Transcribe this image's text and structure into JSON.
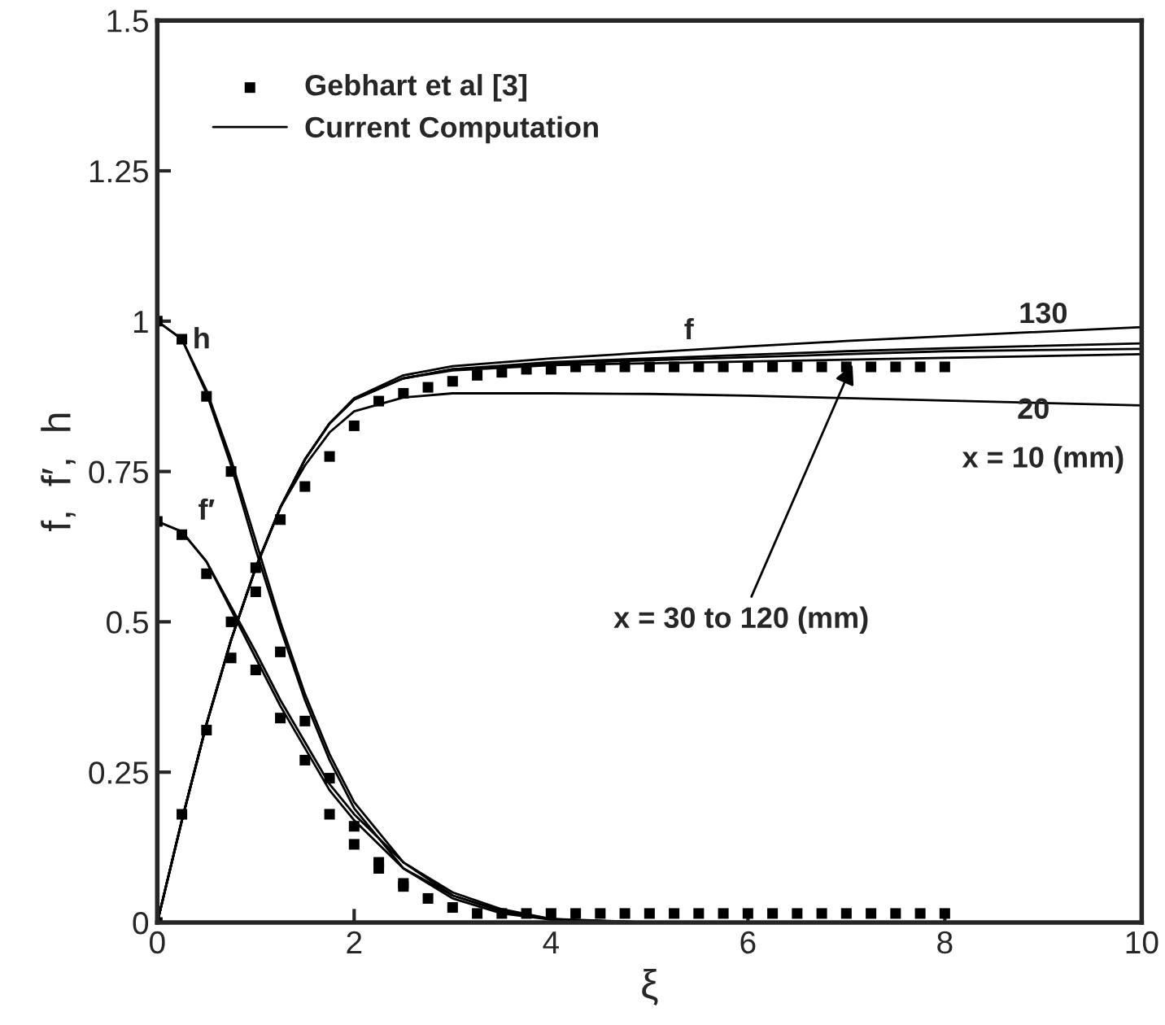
{
  "chart_data": {
    "type": "line",
    "xlabel": "ξ",
    "ylabel": "f,  f′,  h",
    "xlim": [
      0,
      10
    ],
    "ylim": [
      0,
      1.5
    ],
    "xticks": [
      0,
      2,
      4,
      6,
      8,
      10
    ],
    "yticks": [
      0,
      0.25,
      0.5,
      0.75,
      1,
      1.25,
      1.5
    ],
    "grid": false,
    "legend": "top left",
    "series": [
      {
        "type": "scatter",
        "name": "Gebhart et al [3]",
        "color": "#000000",
        "marker": "square",
        "x": [
          0,
          0.25,
          0.5,
          0.75,
          1.0,
          1.25,
          1.5,
          1.75,
          2.0,
          2.25,
          2.5
        ],
        "values": [
          1.0,
          0.97,
          0.875,
          0.75,
          0.59,
          0.45,
          0.335,
          0.24,
          0.16,
          0.1,
          0.065
        ]
      },
      {
        "type": "scatter",
        "color": "#000000",
        "marker": "square",
        "x": [
          0,
          0.25,
          0.5,
          0.75,
          1.0,
          1.25,
          1.5,
          1.75,
          2.0,
          2.25,
          2.5,
          2.75,
          3.0,
          3.25,
          3.5,
          3.75,
          4.0,
          4.25,
          4.5,
          4.75,
          5.0,
          5.25,
          5.5,
          5.75,
          6.0,
          6.25,
          6.5,
          6.75,
          7.0,
          7.25,
          7.5,
          7.75,
          8.0
        ],
        "values": [
          0.667,
          0.645,
          0.58,
          0.5,
          0.42,
          0.34,
          0.27,
          0.18,
          0.13,
          0.09,
          0.06,
          0.04,
          0.025,
          0.015,
          0.015,
          0.015,
          0.015,
          0.015,
          0.015,
          0.015,
          0.015,
          0.015,
          0.015,
          0.015,
          0.015,
          0.015,
          0.015,
          0.015,
          0.015,
          0.015,
          0.015,
          0.015,
          0.015
        ]
      },
      {
        "type": "scatter",
        "color": "#000000",
        "marker": "square",
        "x": [
          0,
          0.25,
          0.5,
          0.75,
          1.0,
          1.25,
          1.5,
          1.75,
          2.0,
          2.25,
          2.5,
          2.75,
          3.0,
          3.25,
          3.5,
          3.75,
          4.0,
          4.25,
          4.5,
          4.75,
          5.0,
          5.25,
          5.5,
          5.75,
          6.0,
          6.25,
          6.5,
          6.75,
          7.0,
          7.25,
          7.5,
          7.75,
          8.0
        ],
        "values": [
          0,
          0.18,
          0.32,
          0.44,
          0.55,
          0.67,
          0.725,
          0.775,
          0.826,
          0.867,
          0.88,
          0.89,
          0.9,
          0.91,
          0.915,
          0.92,
          0.92,
          0.924,
          0.924,
          0.924,
          0.924,
          0.924,
          0.924,
          0.924,
          0.924,
          0.924,
          0.924,
          0.924,
          0.924,
          0.924,
          0.924,
          0.924,
          0.924
        ]
      },
      {
        "type": "line",
        "name": "Current Computation",
        "color": "#000000",
        "marker": "none",
        "line_style": "solid",
        "x": [
          0,
          0.25,
          0.5,
          0.75,
          1,
          1.25,
          1.5,
          1.75,
          2,
          2.5,
          3,
          4,
          5,
          6,
          7,
          8,
          10
        ],
        "values": [
          0,
          0.17,
          0.33,
          0.47,
          0.59,
          0.69,
          0.77,
          0.83,
          0.87,
          0.905,
          0.92,
          0.93,
          0.935,
          0.94,
          0.945,
          0.95,
          0.954
        ]
      },
      {
        "type": "line",
        "color": "#000000",
        "marker": "none",
        "line_style": "solid",
        "x": [
          0,
          0.25,
          0.5,
          0.75,
          1,
          1.25,
          1.5,
          1.75,
          2,
          2.5,
          3,
          4,
          5,
          6,
          7,
          8,
          10
        ],
        "values": [
          0,
          0.17,
          0.33,
          0.47,
          0.59,
          0.69,
          0.77,
          0.83,
          0.87,
          0.905,
          0.92,
          0.932,
          0.938,
          0.944,
          0.95,
          0.955,
          0.963
        ]
      },
      {
        "type": "line",
        "color": "#000000",
        "marker": "none",
        "line_style": "solid",
        "x": [
          0,
          0.25,
          0.5,
          0.75,
          1,
          1.25,
          1.5,
          1.75,
          2,
          2.5,
          3,
          4,
          5,
          6,
          7,
          8,
          10
        ],
        "values": [
          0,
          0.17,
          0.33,
          0.47,
          0.59,
          0.69,
          0.77,
          0.83,
          0.87,
          0.905,
          0.918,
          0.927,
          0.93,
          0.933,
          0.936,
          0.939,
          0.945
        ]
      },
      {
        "type": "line",
        "color": "#000000",
        "marker": "none",
        "line_style": "solid",
        "x": [
          0,
          0.25,
          0.5,
          0.75,
          1,
          1.25,
          1.5,
          1.75,
          2,
          2.5,
          3,
          4,
          5,
          6,
          7,
          8,
          10
        ],
        "values": [
          0,
          0.17,
          0.33,
          0.47,
          0.59,
          0.69,
          0.77,
          0.83,
          0.872,
          0.91,
          0.925,
          0.938,
          0.948,
          0.958,
          0.967,
          0.975,
          0.99
        ]
      },
      {
        "type": "line",
        "color": "#000000",
        "marker": "none",
        "line_style": "solid",
        "x": [
          0,
          0.25,
          0.5,
          0.75,
          1,
          1.25,
          1.5,
          1.75,
          2,
          2.5,
          3,
          4,
          5,
          6,
          7,
          8,
          10
        ],
        "values": [
          0,
          0.17,
          0.33,
          0.47,
          0.59,
          0.69,
          0.76,
          0.815,
          0.85,
          0.873,
          0.88,
          0.88,
          0.879,
          0.876,
          0.872,
          0.868,
          0.86
        ]
      },
      {
        "type": "line",
        "color": "#000000",
        "marker": "none",
        "line_style": "solid",
        "x": [
          0,
          0.25,
          0.5,
          0.75,
          1,
          1.25,
          1.5,
          1.75,
          2,
          2.5,
          3,
          3.5,
          4,
          5,
          10
        ],
        "values": [
          0.667,
          0.65,
          0.6,
          0.52,
          0.44,
          0.36,
          0.29,
          0.22,
          0.17,
          0.09,
          0.045,
          0.02,
          0.005,
          0,
          0
        ]
      },
      {
        "color": "#000000",
        "marker": "none",
        "line_style": "solid",
        "x": [
          0,
          0.25,
          0.5,
          0.75,
          1,
          1.25,
          1.5,
          1.75,
          2,
          2.5,
          3,
          3.5,
          4,
          4.5
        ],
        "values": [
          0.667,
          0.65,
          0.6,
          0.525,
          0.45,
          0.37,
          0.3,
          0.23,
          0.18,
          0.1,
          0.05,
          0.022,
          0.006,
          0.002
        ]
      },
      {
        "type": "line",
        "color": "#000000",
        "marker": "none",
        "line_style": "solid",
        "x": [
          0,
          0.25,
          0.5,
          0.75,
          1,
          1.25,
          1.5,
          1.75,
          2,
          2.5,
          3,
          3.5,
          4,
          5,
          10
        ],
        "values": [
          1,
          0.97,
          0.88,
          0.76,
          0.62,
          0.49,
          0.37,
          0.27,
          0.19,
          0.09,
          0.04,
          0.015,
          0.005,
          0,
          0
        ]
      },
      {
        "color": "#000000",
        "marker": "none",
        "line_style": "solid",
        "x": [
          0,
          0.25,
          0.5,
          0.75,
          1,
          1.25,
          1.5,
          1.75,
          2,
          2.5,
          3,
          3.5,
          4,
          5
        ],
        "values": [
          1,
          0.97,
          0.885,
          0.77,
          0.635,
          0.5,
          0.38,
          0.28,
          0.2,
          0.1,
          0.045,
          0.018,
          0.006,
          0
        ]
      }
    ],
    "annotations": [
      "h",
      "f′",
      "f",
      "130",
      "20",
      "x = 10 (mm)",
      {
        "text": "x = 30 to 120 (mm)",
        "x": 7.08,
        "y": 0.935
      }
    ]
  }
}
